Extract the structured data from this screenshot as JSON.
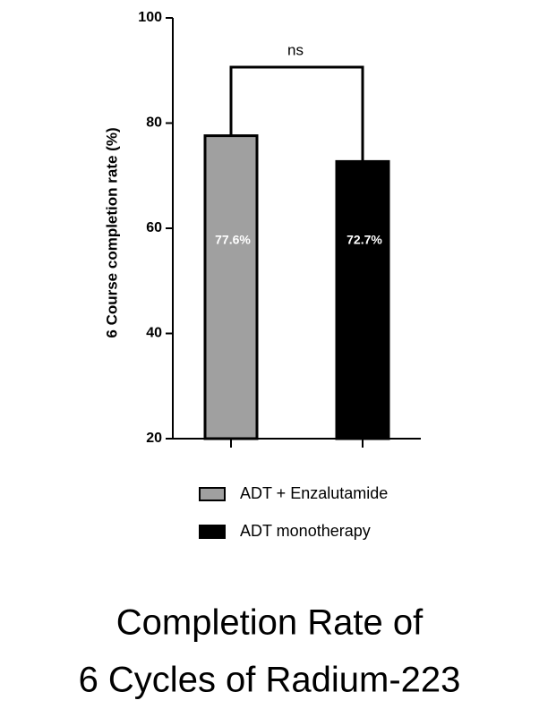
{
  "chart_data": {
    "type": "bar",
    "title": [
      "Completion Rate of",
      "6 Cycles of Radium-223"
    ],
    "y_label": "6 Course completion rate (%)",
    "annotation": "ns",
    "series": [
      {
        "name": "ADT + Enzalutamide",
        "color": "#a0a0a0",
        "values": [
          77.6
        ],
        "value_labels": [
          "77.6%"
        ]
      },
      {
        "name": "ADT monotherapy",
        "color": "#000000",
        "values": [
          72.7
        ],
        "value_labels": [
          "72.7%"
        ]
      }
    ],
    "ylim": [
      20,
      100
    ],
    "yticks": [
      20,
      40,
      60,
      80,
      100
    ]
  }
}
